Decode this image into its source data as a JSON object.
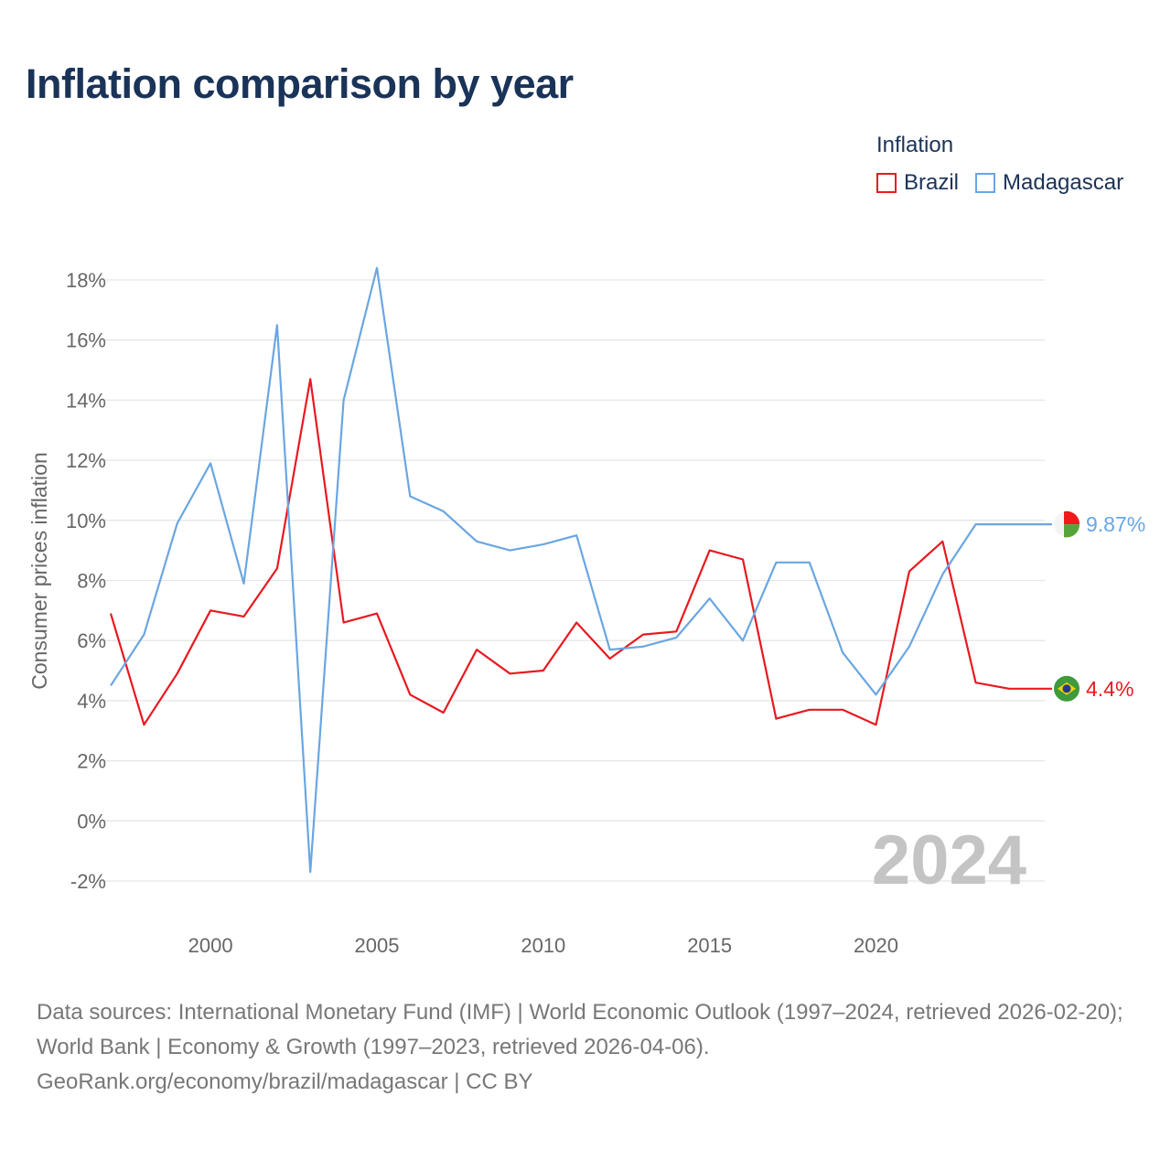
{
  "title": "Inflation comparison by year",
  "legend": {
    "title": "Inflation",
    "items": [
      {
        "label": "Brazil",
        "color": "#e8191f"
      },
      {
        "label": "Madagascar",
        "color": "#6aa6e2"
      }
    ]
  },
  "chart_data": {
    "type": "line",
    "title": "Inflation comparison by year",
    "xlabel": "",
    "ylabel": "Consumer prices inflation",
    "x": [
      1997,
      1998,
      1999,
      2000,
      2001,
      2002,
      2003,
      2004,
      2005,
      2006,
      2007,
      2008,
      2009,
      2010,
      2011,
      2012,
      2013,
      2014,
      2015,
      2016,
      2017,
      2018,
      2019,
      2020,
      2021,
      2022,
      2023,
      2024
    ],
    "xlim": [
      1997,
      2024
    ],
    "ylim": [
      -2,
      18
    ],
    "x_ticks": [
      2000,
      2005,
      2010,
      2015,
      2020
    ],
    "y_ticks": [
      -2,
      0,
      2,
      4,
      6,
      8,
      10,
      12,
      14,
      16,
      18
    ],
    "y_tick_labels": [
      "-2%",
      "0%",
      "2%",
      "4%",
      "6%",
      "8%",
      "10%",
      "12%",
      "14%",
      "16%",
      "18%"
    ],
    "grid": true,
    "year_watermark": "2024",
    "series": [
      {
        "name": "Brazil",
        "color": "#e8191f",
        "values": [
          6.9,
          3.2,
          4.9,
          7.0,
          6.8,
          8.4,
          14.7,
          6.6,
          6.9,
          4.2,
          3.6,
          5.7,
          4.9,
          5.0,
          6.6,
          5.4,
          6.2,
          6.3,
          9.0,
          8.7,
          3.4,
          3.7,
          3.7,
          3.2,
          8.3,
          9.3,
          4.6,
          4.4
        ],
        "end_label": "4.4%"
      },
      {
        "name": "Madagascar",
        "color": "#6aa6e2",
        "values": [
          4.5,
          6.2,
          9.9,
          11.9,
          7.9,
          16.5,
          -1.7,
          14.0,
          18.4,
          10.8,
          10.3,
          9.3,
          9.0,
          9.2,
          9.5,
          5.7,
          5.8,
          6.1,
          7.4,
          6.0,
          8.6,
          8.6,
          5.6,
          4.2,
          5.8,
          8.2,
          9.87,
          9.87
        ],
        "end_label": "9.87%"
      }
    ]
  },
  "footer": {
    "line1": "Data sources: International Monetary Fund (IMF) | World Economic Outlook (1997–2024, retrieved 2026-02-20); World Bank | Economy & Growth (1997–2023, retrieved 2026-04-06).",
    "line2": "GeoRank.org/economy/brazil/madagascar | CC BY"
  },
  "colors": {
    "title": "#1a3358",
    "axis_text": "#666666",
    "grid": "#e6e6e6",
    "watermark": "#c4c4c4"
  }
}
